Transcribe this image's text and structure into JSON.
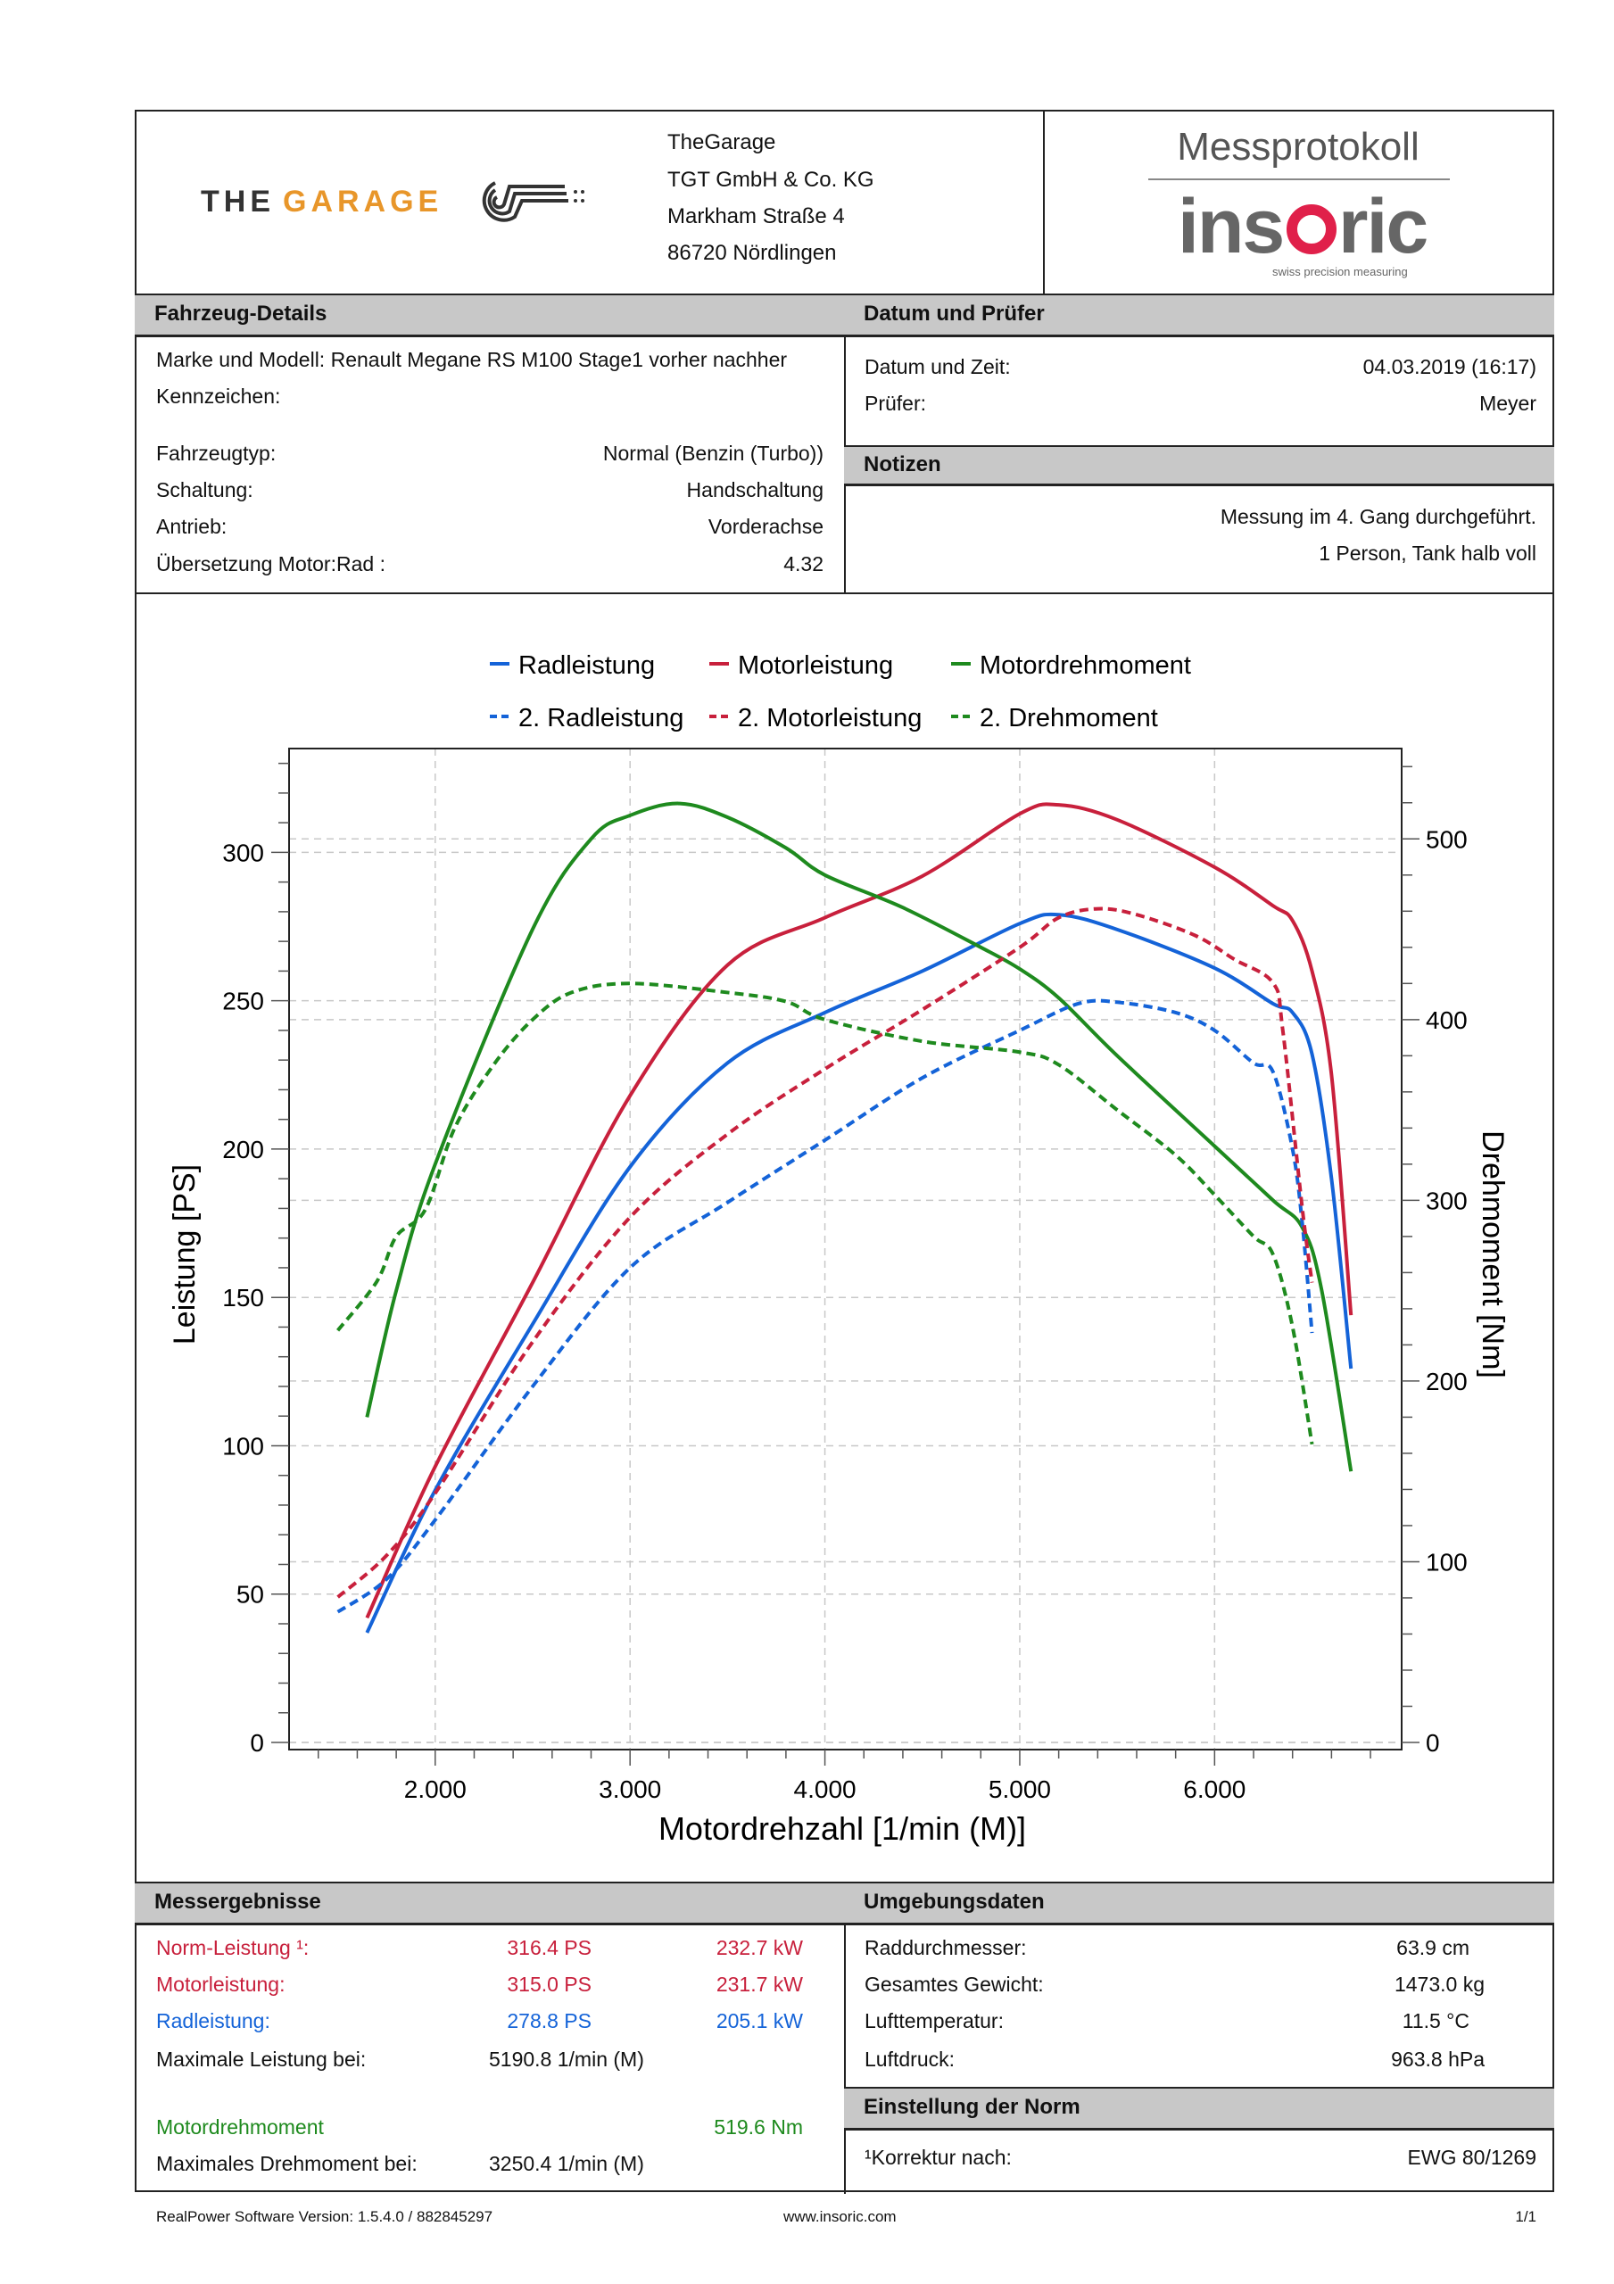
{
  "header": {
    "logo_left": "THEGARAGE",
    "address": [
      "TheGarage",
      "TGT GmbH & Co. KG",
      "Markham Straße 4",
      "86720 Nördlingen"
    ],
    "doc_title": "Messprotokoll",
    "logo_right": "insoric",
    "logo_right_tagline": "swiss precision measuring"
  },
  "vehicle": {
    "title": "Fahrzeug-Details",
    "model_line": "Marke und Modell: Renault Megane RS M100 Stage1 vorher nachher",
    "plate_label": "Kennzeichen:",
    "rows": [
      {
        "label": "Fahrzeugtyp:",
        "value": "Normal (Benzin (Turbo))"
      },
      {
        "label": "Schaltung:",
        "value": "Handschaltung"
      },
      {
        "label": "Antrieb:",
        "value": "Vorderachse"
      },
      {
        "label": "Übersetzung Motor:Rad :",
        "value": "4.32"
      }
    ]
  },
  "date": {
    "title": "Datum und Prüfer",
    "rows": [
      {
        "label": "Datum und Zeit:",
        "value": "04.03.2019 (16:17)"
      },
      {
        "label": "Prüfer:",
        "value": "Meyer"
      }
    ]
  },
  "notes": {
    "title": "Notizen",
    "lines": [
      "Messung im 4. Gang durchgeführt.",
      "1 Person, Tank halb voll"
    ]
  },
  "chart_data": {
    "type": "line",
    "xlabel": "Motordrehzahl [1/min (M)]",
    "ylabel": "Leistung [PS]",
    "y2label": "Drehmoment [Nm]",
    "xlim": [
      1250,
      6960
    ],
    "ylim": [
      0,
      335
    ],
    "y2lim": [
      0,
      550
    ],
    "xticks": [
      2000,
      3000,
      4000,
      5000,
      6000
    ],
    "xtick_labels": [
      "2.000",
      "3.000",
      "4.000",
      "5.000",
      "6.000"
    ],
    "yticks": [
      0,
      50,
      100,
      150,
      200,
      250,
      300
    ],
    "yticks_labels": [
      "0",
      "50",
      "100",
      "150",
      "200",
      "250",
      "300"
    ],
    "y2ticks": [
      0,
      100,
      200,
      300,
      400,
      500
    ],
    "y2tick_labels": [
      "0",
      "100",
      "200",
      "300",
      "400",
      "500"
    ],
    "grid": true,
    "legend_position": "top",
    "series": [
      {
        "name": "Radleistung",
        "axis": "left",
        "color": "#1463d8",
        "dashed": false,
        "x": [
          1650,
          2000,
          2500,
          3000,
          3500,
          4000,
          4500,
          5000,
          5200,
          5500,
          6000,
          6300,
          6400,
          6500,
          6600,
          6700
        ],
        "y": [
          37,
          85,
          141,
          194,
          229,
          246,
          260,
          276,
          279,
          274,
          261,
          249,
          246,
          232,
          190,
          126
        ]
      },
      {
        "name": "Motorleistung",
        "axis": "left",
        "color": "#c8203c",
        "dashed": false,
        "x": [
          1650,
          2000,
          2500,
          3000,
          3500,
          4000,
          4500,
          5000,
          5200,
          5500,
          6000,
          6300,
          6400,
          6500,
          6600,
          6700
        ],
        "y": [
          42,
          93,
          155,
          218,
          262,
          278,
          292,
          313,
          316,
          311,
          295,
          282,
          277,
          260,
          225,
          144
        ]
      },
      {
        "name": "Motordrehmoment",
        "axis": "right",
        "color": "#1e8a1e",
        "dashed": false,
        "x": [
          1650,
          1800,
          2000,
          2500,
          2800,
          3000,
          3250,
          3500,
          3800,
          4000,
          4400,
          4800,
          5000,
          5200,
          5500,
          6000,
          6300,
          6450,
          6550,
          6700
        ],
        "y": [
          180,
          250,
          320,
          450,
          500,
          513,
          519.6,
          512,
          495,
          480,
          462,
          440,
          428,
          412,
          380,
          330,
          300,
          285,
          250,
          150
        ]
      },
      {
        "name": "2. Radleistung",
        "axis": "left",
        "color": "#1463d8",
        "dashed": true,
        "x": [
          1500,
          1750,
          2000,
          2500,
          3000,
          3500,
          4000,
          4500,
          5000,
          5300,
          5500,
          5800,
          6000,
          6200,
          6300,
          6400,
          6450,
          6500
        ],
        "y": [
          44,
          55,
          75,
          120,
          160,
          182,
          203,
          224,
          240,
          249,
          249.5,
          246,
          240,
          229,
          226,
          200,
          175,
          138
        ]
      },
      {
        "name": "2. Motorleistung",
        "axis": "left",
        "color": "#c8203c",
        "dashed": true,
        "x": [
          1500,
          1750,
          2000,
          2500,
          3000,
          3500,
          4000,
          4500,
          5000,
          5200,
          5400,
          5600,
          5900,
          6100,
          6300,
          6350,
          6450,
          6500
        ],
        "y": [
          49,
          63,
          84,
          135,
          177,
          205,
          227,
          247,
          268,
          278,
          281,
          279,
          272,
          264,
          256,
          240,
          180,
          155
        ]
      },
      {
        "name": "2. Drehmoment",
        "axis": "right",
        "color": "#1e8a1e",
        "dashed": true,
        "x": [
          1500,
          1700,
          1800,
          1950,
          2100,
          2300,
          2500,
          2700,
          3000,
          3500,
          3800,
          4000,
          4500,
          5000,
          5200,
          5500,
          5800,
          6000,
          6200,
          6300,
          6400,
          6500
        ],
        "y": [
          228,
          255,
          280,
          295,
          340,
          375,
          400,
          415,
          420,
          415,
          410,
          400,
          388,
          382,
          375,
          350,
          325,
          303,
          280,
          270,
          230,
          165
        ]
      }
    ]
  },
  "results": {
    "title": "Messergebnisse",
    "rows": [
      {
        "label": "Norm-Leistung ¹:",
        "ps": "316.4 PS",
        "kw": "232.7 kW",
        "color": "#c8203c"
      },
      {
        "label": "Motorleistung:",
        "ps": "315.0 PS",
        "kw": "231.7 kW",
        "color": "#c8203c"
      },
      {
        "label": "Radleistung:",
        "ps": "278.8 PS",
        "kw": "205.1 kW",
        "color": "#1463d8"
      }
    ],
    "max_power_label": "Maximale Leistung bei:",
    "max_power_value": "5190.8 1/min (M)",
    "torque_label": "Motordrehmoment",
    "torque_value": "519.6 Nm",
    "max_torque_label": "Maximales Drehmoment bei:",
    "max_torque_value": "3250.4 1/min (M)"
  },
  "environment": {
    "title": "Umgebungsdaten",
    "rows": [
      {
        "label": "Raddurchmesser:",
        "value": "63.9 cm"
      },
      {
        "label": "Gesamtes Gewicht:",
        "value": "1473.0 kg"
      },
      {
        "label": "Lufttemperatur:",
        "value": "11.5 °C"
      },
      {
        "label": "Luftdruck:",
        "value": "963.8 hPa"
      }
    ]
  },
  "norm": {
    "title": "Einstellung der Norm",
    "label": "¹Korrektur nach:",
    "value": "EWG 80/1269"
  },
  "footer": {
    "software": "RealPower Software Version: 1.5.4.0 / 882845297",
    "website": "www.insoric.com",
    "page": "1/1"
  }
}
